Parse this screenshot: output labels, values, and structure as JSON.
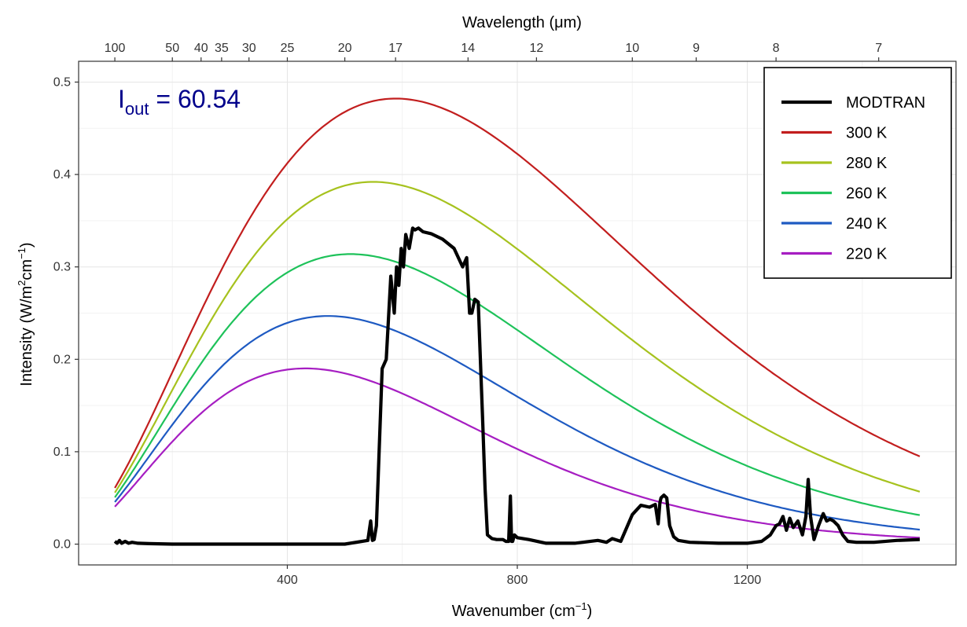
{
  "chart_data": {
    "type": "line",
    "xlabel": "Wavenumber (cm",
    "xlabel_sup": "−1",
    "xlabel_end": ")",
    "x2label": "Wavelength (μm)",
    "ylabel": "Intensity (W/m",
    "ylabel_sup1": "2",
    "ylabel_mid": "cm",
    "ylabel_sup2": "−1",
    "ylabel_end": ")",
    "xlim": [
      100,
      1500
    ],
    "ylim": [
      0,
      0.5
    ],
    "x_ticks": [
      400,
      800,
      1200
    ],
    "x_tick_labels": [
      "400",
      "800",
      "1200"
    ],
    "y_ticks": [
      0,
      0.1,
      0.2,
      0.3,
      0.4,
      0.5
    ],
    "y_tick_labels": [
      "0.0",
      "0.1",
      "0.2",
      "0.3",
      "0.4",
      "0.5"
    ],
    "x2_ticks_wavelength_um": [
      100,
      50,
      40,
      35,
      30,
      25,
      20,
      17,
      14,
      12,
      10,
      9,
      8,
      7
    ],
    "x2_tick_labels": [
      "100",
      "50",
      "40",
      "35",
      "30",
      "25",
      "20",
      "17",
      "14",
      "12",
      "10",
      "9",
      "8",
      "7"
    ],
    "grid": true,
    "legend_position": "top-right",
    "annotation": {
      "base": "I",
      "sub": "out",
      "rest": " = 60.54"
    },
    "series": [
      {
        "name": "MODTRAN",
        "color": "#000000",
        "x": [
          100,
          104,
          108,
          112,
          118,
          124,
          130,
          140,
          160,
          200,
          300,
          400,
          500,
          540,
          545,
          548,
          551,
          555,
          565,
          572,
          580,
          586,
          590,
          594,
          598,
          602,
          606,
          612,
          618,
          622,
          628,
          636,
          650,
          670,
          690,
          705,
          712,
          717,
          721,
          726,
          732,
          740,
          744,
          748,
          756,
          764,
          770,
          775,
          780,
          785,
          788,
          790,
          792,
          795,
          800,
          820,
          850,
          900,
          940,
          955,
          965,
          980,
          1000,
          1015,
          1030,
          1040,
          1045,
          1048,
          1050,
          1055,
          1060,
          1065,
          1072,
          1080,
          1100,
          1150,
          1200,
          1225,
          1240,
          1250,
          1256,
          1262,
          1268,
          1274,
          1280,
          1288,
          1296,
          1302,
          1306,
          1310,
          1316,
          1324,
          1332,
          1338,
          1344,
          1350,
          1358,
          1366,
          1375,
          1390,
          1420,
          1460,
          1500
        ],
        "y": [
          0.003,
          0.001,
          0.004,
          0.001,
          0.003,
          0.001,
          0.002,
          0.001,
          0.0005,
          0.0,
          0.0,
          0.0,
          0.0,
          0.004,
          0.025,
          0.004,
          0.005,
          0.02,
          0.19,
          0.2,
          0.29,
          0.25,
          0.3,
          0.28,
          0.32,
          0.3,
          0.335,
          0.32,
          0.342,
          0.34,
          0.342,
          0.338,
          0.336,
          0.33,
          0.32,
          0.3,
          0.31,
          0.25,
          0.25,
          0.265,
          0.262,
          0.13,
          0.06,
          0.01,
          0.006,
          0.005,
          0.005,
          0.005,
          0.003,
          0.003,
          0.052,
          0.003,
          0.003,
          0.01,
          0.007,
          0.005,
          0.001,
          0.001,
          0.004,
          0.002,
          0.006,
          0.003,
          0.032,
          0.042,
          0.04,
          0.043,
          0.022,
          0.045,
          0.05,
          0.053,
          0.05,
          0.02,
          0.008,
          0.004,
          0.002,
          0.001,
          0.001,
          0.003,
          0.01,
          0.02,
          0.022,
          0.03,
          0.015,
          0.028,
          0.018,
          0.025,
          0.01,
          0.03,
          0.07,
          0.03,
          0.005,
          0.02,
          0.033,
          0.025,
          0.027,
          0.025,
          0.02,
          0.01,
          0.003,
          0.002,
          0.002,
          0.004,
          0.005
        ]
      },
      {
        "name": "300 K",
        "color": "#c21e1e",
        "temperature_K": 300
      },
      {
        "name": "280 K",
        "color": "#a6c21e",
        "temperature_K": 280
      },
      {
        "name": "260 K",
        "color": "#1ec25a",
        "temperature_K": 260
      },
      {
        "name": "240 K",
        "color": "#1e5ac2",
        "temperature_K": 240
      },
      {
        "name": "220 K",
        "color": "#a61ec2",
        "temperature_K": 220
      }
    ]
  }
}
